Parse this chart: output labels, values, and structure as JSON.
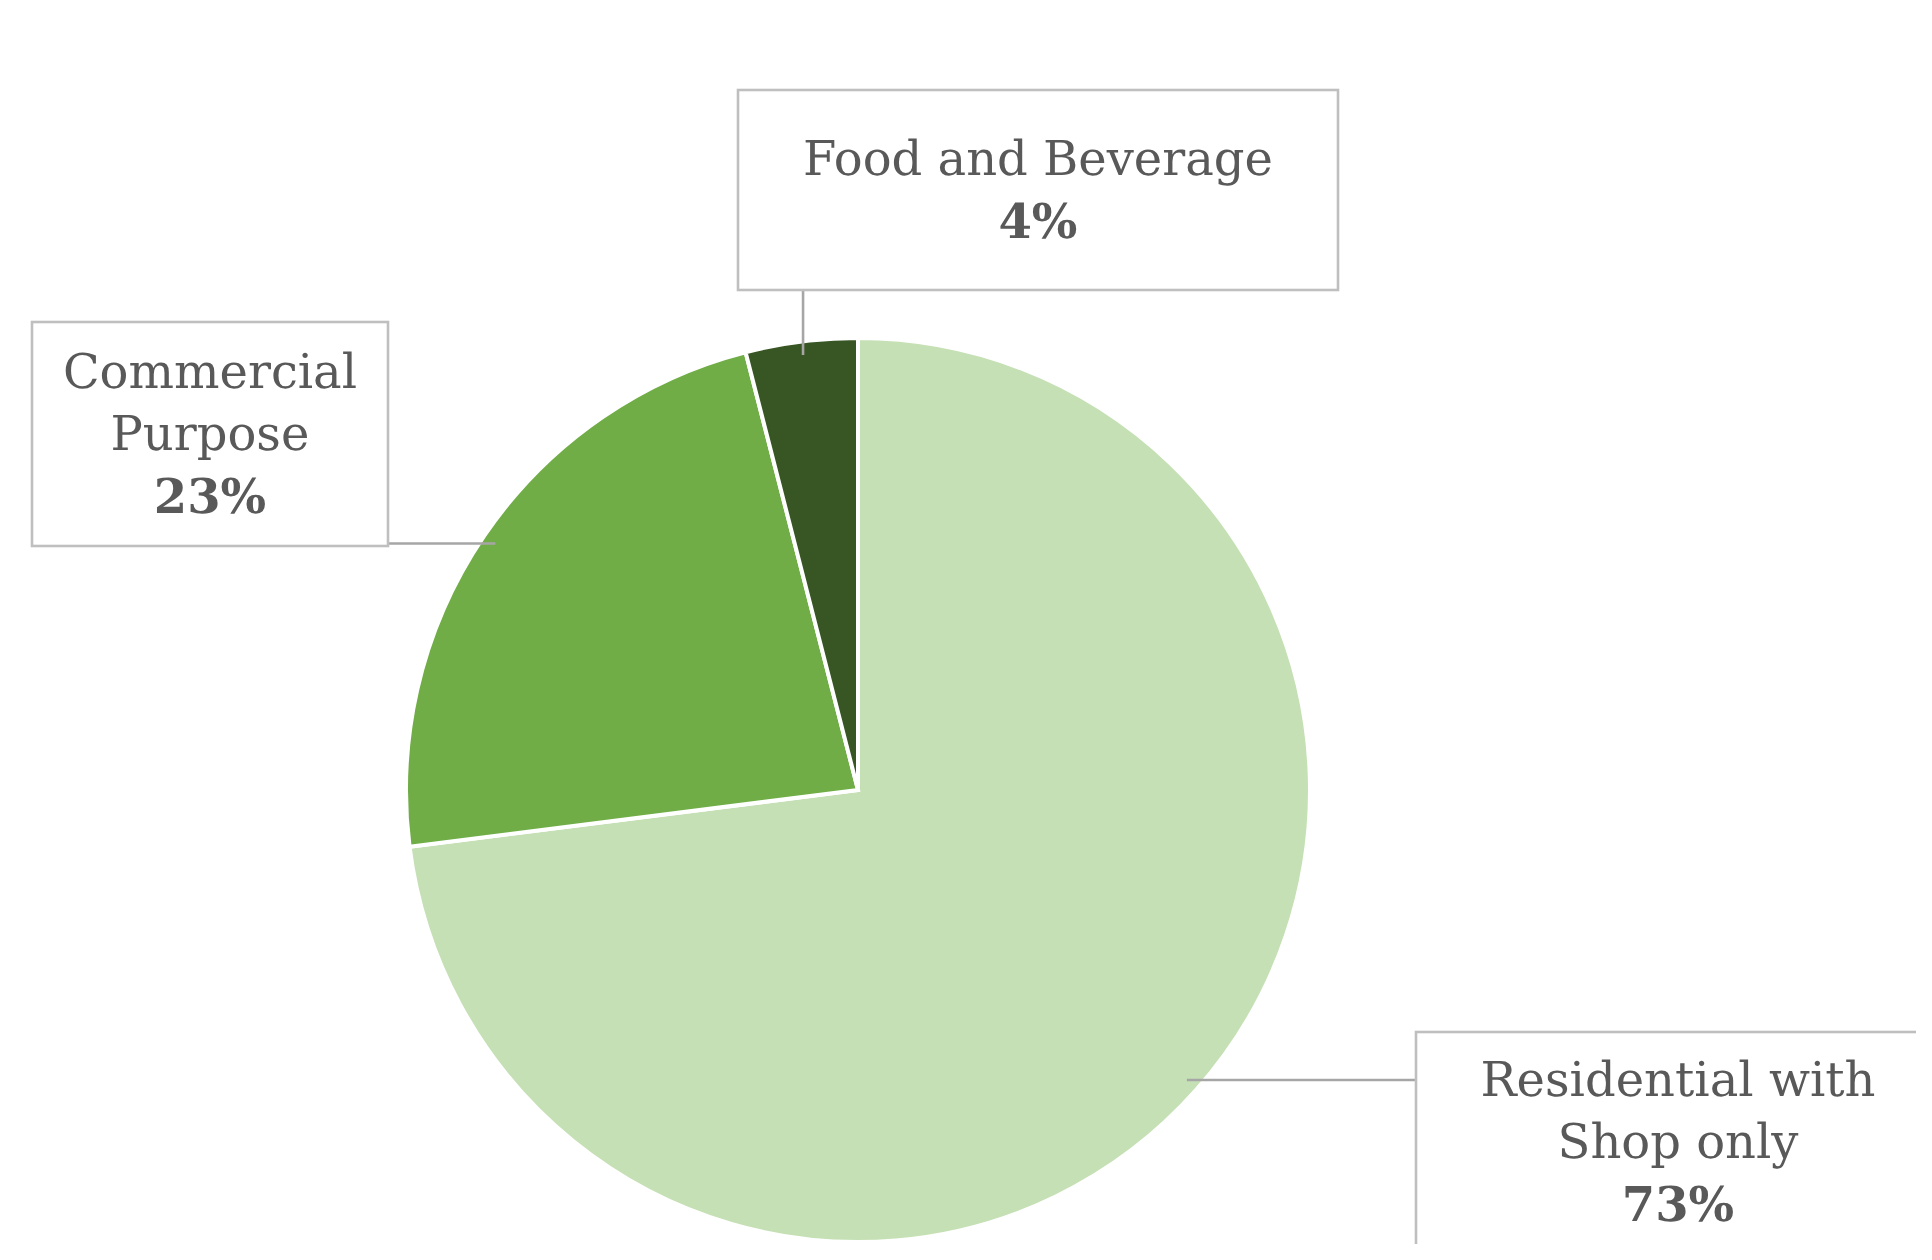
{
  "chart_data": {
    "type": "pie",
    "categories": [
      "Residential with Shop only",
      "Commercial Purpose",
      "Food and Beverage"
    ],
    "values": [
      73,
      23,
      4
    ],
    "colors": [
      "#c5e0b4",
      "#70ad47",
      "#375623"
    ],
    "value_labels": [
      "73%",
      "23%",
      "4%"
    ]
  }
}
